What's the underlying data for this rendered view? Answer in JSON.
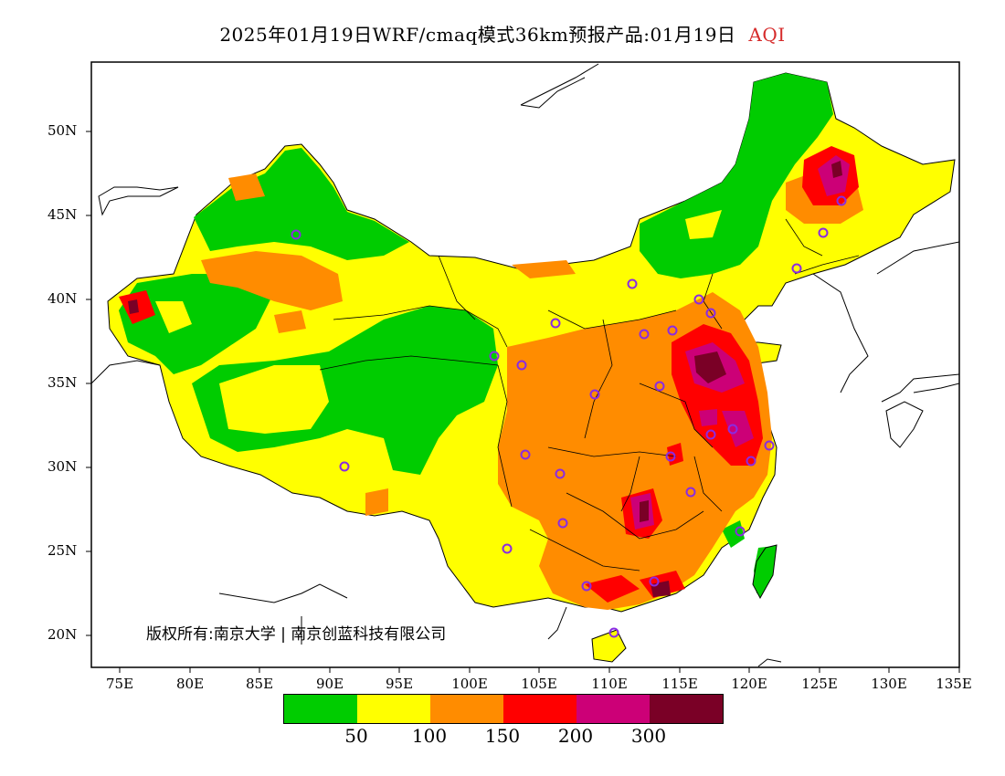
{
  "title": {
    "main": "2025年01月19日WRF/cmaq模式36km预报产品:01月19日",
    "variable": "AQI",
    "variable_color": "#d62b2b"
  },
  "copyright": "版权所有:南京大学 | 南京创蓝科技有限公司",
  "axes": {
    "y_ticks": [
      "50N",
      "45N",
      "40N",
      "35N",
      "30N",
      "25N",
      "20N"
    ],
    "x_ticks": [
      "75E",
      "80E",
      "85E",
      "90E",
      "95E",
      "100E",
      "105E",
      "110E",
      "115E",
      "120E",
      "125E",
      "130E",
      "135E"
    ]
  },
  "legend": {
    "colors": [
      "#00cc00",
      "#ffff00",
      "#ff8c00",
      "#ff0000",
      "#cc0077",
      "#7a0026"
    ],
    "labels": [
      "50",
      "100",
      "150",
      "200",
      "300"
    ]
  },
  "palette": {
    "border": "#000000",
    "station_marker": "#8a2be2"
  }
}
